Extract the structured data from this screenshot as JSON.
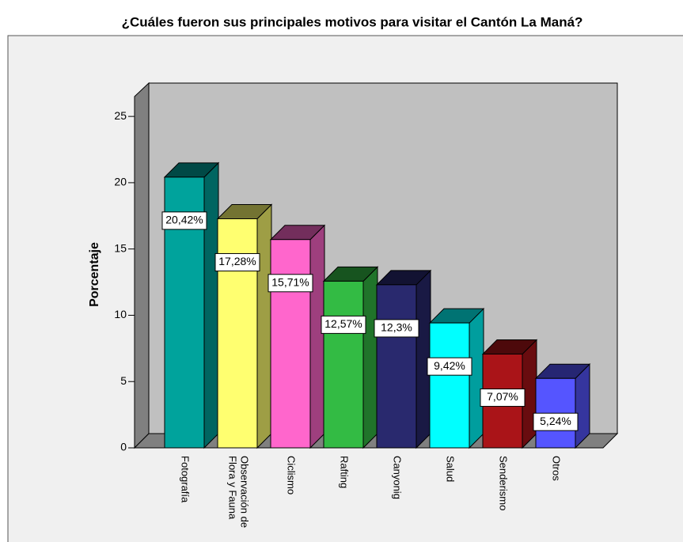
{
  "chart_data": {
    "type": "bar3d",
    "title": "¿Cuáles fueron sus principales motivos para visitar el Cantón La Maná?",
    "y_label": "Porcentaje",
    "categories": [
      "Fotografía",
      "Observación de\nFlora y Fauna",
      "Ciclismo",
      "Rafting",
      "Canyonig",
      "Salud",
      "Senderismo",
      "Otros"
    ],
    "values": [
      20.42,
      17.28,
      15.71,
      12.57,
      12.3,
      9.42,
      7.07,
      5.24
    ],
    "value_labels": [
      "20,42%",
      "17,28%",
      "15,71%",
      "12,57%",
      "12,3%",
      "9,42%",
      "7,07%",
      "5,24%"
    ],
    "colors": [
      "#00a39c",
      "#ffff70",
      "#ff66cc",
      "#33bb44",
      "#29296e",
      "#00ffff",
      "#aa1418",
      "#5555ff"
    ],
    "ylim": [
      0,
      26.5
    ],
    "yticks": [
      0,
      5,
      10,
      15,
      20,
      25
    ]
  }
}
